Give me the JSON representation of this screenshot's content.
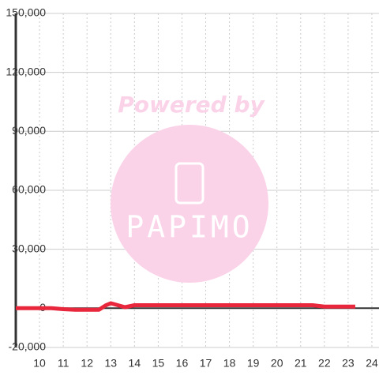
{
  "chart_data": {
    "type": "line",
    "x": [
      9,
      9.5,
      10,
      10.5,
      11,
      11.5,
      12,
      12.5,
      12.8,
      13,
      13.3,
      13.6,
      14,
      14.5,
      15,
      16,
      17,
      18,
      19,
      20,
      21,
      21.5,
      22,
      22.5,
      23,
      23.3
    ],
    "series": [
      {
        "color": "#e8273c",
        "values": [
          0,
          0,
          0,
          0,
          -500,
          -800,
          -800,
          -800,
          1500,
          2500,
          1500,
          500,
          1500,
          1500,
          1500,
          1500,
          1500,
          1500,
          1500,
          1500,
          1500,
          1500,
          800,
          800,
          800,
          800
        ]
      }
    ],
    "xlim": [
      9,
      24.3
    ],
    "xticks": [
      10,
      11,
      12,
      13,
      14,
      15,
      16,
      17,
      18,
      19,
      20,
      21,
      22,
      23,
      24
    ],
    "ylim": [
      -20000,
      150000
    ],
    "yticks": [
      {
        "value": -20000,
        "label": "-20,000"
      },
      0,
      {
        "value": 30000,
        "label": "30,000"
      },
      {
        "value": 60000,
        "label": "60,000"
      },
      {
        "value": 90000,
        "label": "90,000"
      },
      {
        "value": 120000,
        "label": "120,000"
      },
      {
        "value": 150000,
        "label": "150,000"
      }
    ],
    "grid": true
  },
  "watermark": {
    "text": "Powered by",
    "logo": "PAPIMO"
  }
}
